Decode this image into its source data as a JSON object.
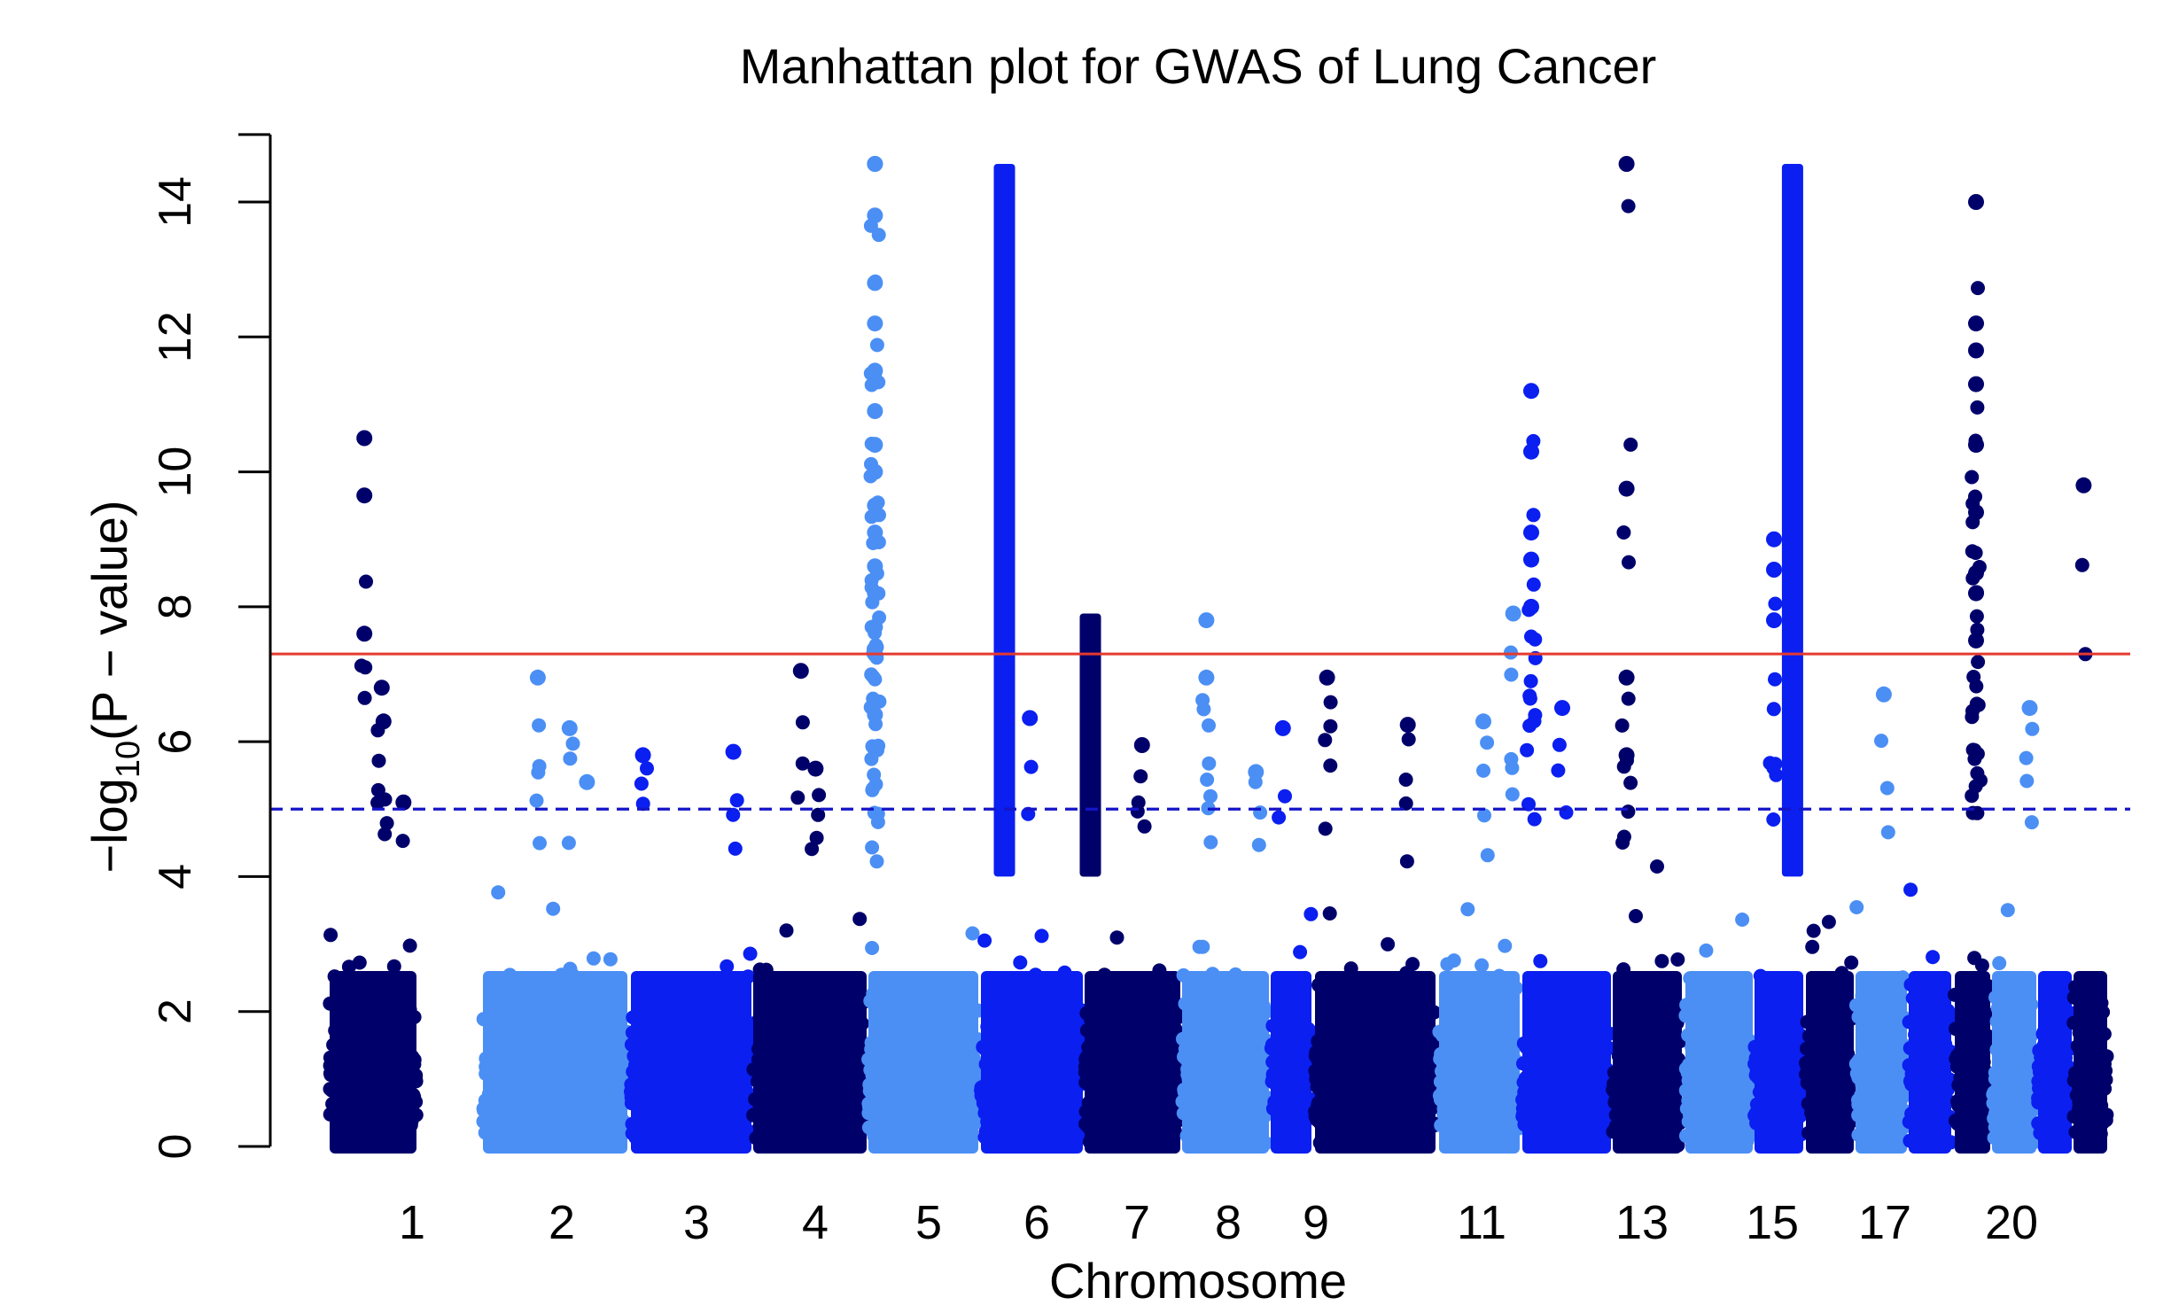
{
  "chart_data": {
    "type": "scatter",
    "title": "Manhattan plot for GWAS of Lung Cancer",
    "xlabel": "Chromosome",
    "ylabel": {
      "prefix": "−log",
      "subscript": "10",
      "suffix": "(P − value)"
    },
    "ylim": [
      0,
      15
    ],
    "y_ticks": [
      0,
      2,
      4,
      6,
      8,
      10,
      12,
      14
    ],
    "x_tick_labels": [
      "1",
      "2",
      "3",
      "4",
      "5",
      "6",
      "7",
      "8",
      "9",
      "11",
      "13",
      "15",
      "17",
      "20"
    ],
    "genome_wide_threshold": 7.3,
    "suggestive_threshold": 5.0,
    "colors": {
      "palette": [
        "#00006b",
        "#4b8ff5",
        "#0a1ff0"
      ],
      "genome_wide_line": "#e53a2f",
      "suggestive_line": "#1515c8"
    },
    "chromosomes": [
      {
        "chr": "1",
        "label": "1",
        "color": 0,
        "peaks": [
          {
            "pos": 0.4,
            "y": 10.5
          },
          {
            "pos": 0.4,
            "y": 9.65
          },
          {
            "pos": 0.4,
            "y": 7.6
          },
          {
            "pos": 0.6,
            "y": 6.8
          },
          {
            "pos": 0.62,
            "y": 6.3
          },
          {
            "pos": 0.85,
            "y": 5.1
          }
        ]
      },
      {
        "chr": "2",
        "label": "2",
        "color": 1,
        "peaks": [
          {
            "pos": 0.38,
            "y": 6.95
          },
          {
            "pos": 0.6,
            "y": 6.2
          },
          {
            "pos": 0.72,
            "y": 5.4
          }
        ]
      },
      {
        "chr": "3",
        "label": "3",
        "color": 2,
        "peaks": [
          {
            "pos": 0.1,
            "y": 5.8
          },
          {
            "pos": 0.85,
            "y": 5.85
          }
        ]
      },
      {
        "chr": "4",
        "label": "4",
        "color": 0,
        "peaks": [
          {
            "pos": 0.42,
            "y": 7.05
          },
          {
            "pos": 0.55,
            "y": 5.6
          }
        ]
      },
      {
        "chr": "5",
        "label": "5",
        "color": 1,
        "peaks": [
          {
            "pos": 0.06,
            "y": 15.2
          },
          {
            "pos": 0.06,
            "y": 14.7
          },
          {
            "pos": 0.06,
            "y": 13.8
          },
          {
            "pos": 0.06,
            "y": 12.8
          },
          {
            "pos": 0.06,
            "y": 12.2
          },
          {
            "pos": 0.06,
            "y": 11.5
          },
          {
            "pos": 0.06,
            "y": 10.9
          },
          {
            "pos": 0.06,
            "y": 10.4
          },
          {
            "pos": 0.06,
            "y": 10.0
          },
          {
            "pos": 0.06,
            "y": 9.5
          },
          {
            "pos": 0.06,
            "y": 9.1
          },
          {
            "pos": 0.06,
            "y": 8.6
          },
          {
            "pos": 0.06,
            "y": 8.2
          },
          {
            "pos": 0.06,
            "y": 7.7
          },
          {
            "pos": 0.06,
            "y": 7.3
          },
          {
            "pos": 0.06,
            "y": 6.4
          }
        ]
      },
      {
        "chr": "6",
        "label": "6",
        "color": 2,
        "peaks": [
          {
            "pos": 0.23,
            "y": 15.2,
            "column": true
          },
          {
            "pos": 0.48,
            "y": 6.35
          }
        ]
      },
      {
        "chr": "7",
        "label": "7",
        "color": 0,
        "peaks": [
          {
            "pos": 0.06,
            "y": 7.9,
            "column": true
          },
          {
            "pos": 0.6,
            "y": 5.95
          }
        ]
      },
      {
        "chr": "8",
        "label": "8",
        "color": 1,
        "peaks": [
          {
            "pos": 0.28,
            "y": 7.8
          },
          {
            "pos": 0.28,
            "y": 6.95
          },
          {
            "pos": 0.85,
            "y": 5.55
          }
        ]
      },
      {
        "chr": "9",
        "label": "9",
        "color": 2,
        "peaks": [
          {
            "pos": 0.3,
            "y": 6.2
          }
        ]
      },
      {
        "chr": "10",
        "label": "",
        "color": 0,
        "peaks": [
          {
            "pos": 0.1,
            "y": 6.95
          },
          {
            "pos": 0.77,
            "y": 6.25
          }
        ]
      },
      {
        "chr": "11",
        "label": "11",
        "color": 1,
        "peaks": [
          {
            "pos": 0.55,
            "y": 6.3
          },
          {
            "pos": 0.92,
            "y": 7.9
          }
        ]
      },
      {
        "chr": "12",
        "label": "",
        "color": 2,
        "peaks": [
          {
            "pos": 0.1,
            "y": 11.2
          },
          {
            "pos": 0.1,
            "y": 10.3
          },
          {
            "pos": 0.1,
            "y": 9.1
          },
          {
            "pos": 0.1,
            "y": 8.7
          },
          {
            "pos": 0.1,
            "y": 8.0
          },
          {
            "pos": 0.45,
            "y": 6.5
          }
        ]
      },
      {
        "chr": "13",
        "label": "13",
        "color": 0,
        "peaks": [
          {
            "pos": 0.2,
            "y": 15.2
          },
          {
            "pos": 0.2,
            "y": 9.75
          },
          {
            "pos": 0.2,
            "y": 6.95
          },
          {
            "pos": 0.2,
            "y": 5.8
          }
        ]
      },
      {
        "chr": "14",
        "label": "",
        "color": 1,
        "peaks": []
      },
      {
        "chr": "15",
        "label": "15",
        "color": 2,
        "peaks": [
          {
            "pos": 0.78,
            "y": 15.2,
            "column": true
          },
          {
            "pos": 0.4,
            "y": 9.0
          },
          {
            "pos": 0.4,
            "y": 8.55
          },
          {
            "pos": 0.4,
            "y": 7.8
          }
        ]
      },
      {
        "chr": "16",
        "label": "",
        "color": 0,
        "peaks": []
      },
      {
        "chr": "17",
        "label": "17",
        "color": 1,
        "peaks": [
          {
            "pos": 0.55,
            "y": 6.7
          }
        ]
      },
      {
        "chr": "18",
        "label": "",
        "color": 2,
        "peaks": []
      },
      {
        "chr": "19",
        "label": "",
        "color": 0,
        "peaks": [
          {
            "pos": 0.6,
            "y": 14.0
          },
          {
            "pos": 0.6,
            "y": 12.2
          },
          {
            "pos": 0.6,
            "y": 11.8
          },
          {
            "pos": 0.6,
            "y": 11.3
          },
          {
            "pos": 0.6,
            "y": 10.4
          },
          {
            "pos": 0.6,
            "y": 9.4
          },
          {
            "pos": 0.6,
            "y": 8.5
          },
          {
            "pos": 0.6,
            "y": 8.2
          },
          {
            "pos": 0.6,
            "y": 7.5
          }
        ]
      },
      {
        "chr": "20",
        "label": "20",
        "color": 1,
        "peaks": [
          {
            "pos": 0.85,
            "y": 6.5
          }
        ]
      },
      {
        "chr": "21",
        "label": "",
        "color": 2,
        "peaks": []
      },
      {
        "chr": "22",
        "label": "",
        "color": 0,
        "peaks": [
          {
            "pos": 0.3,
            "y": 9.8
          }
        ]
      }
    ]
  }
}
